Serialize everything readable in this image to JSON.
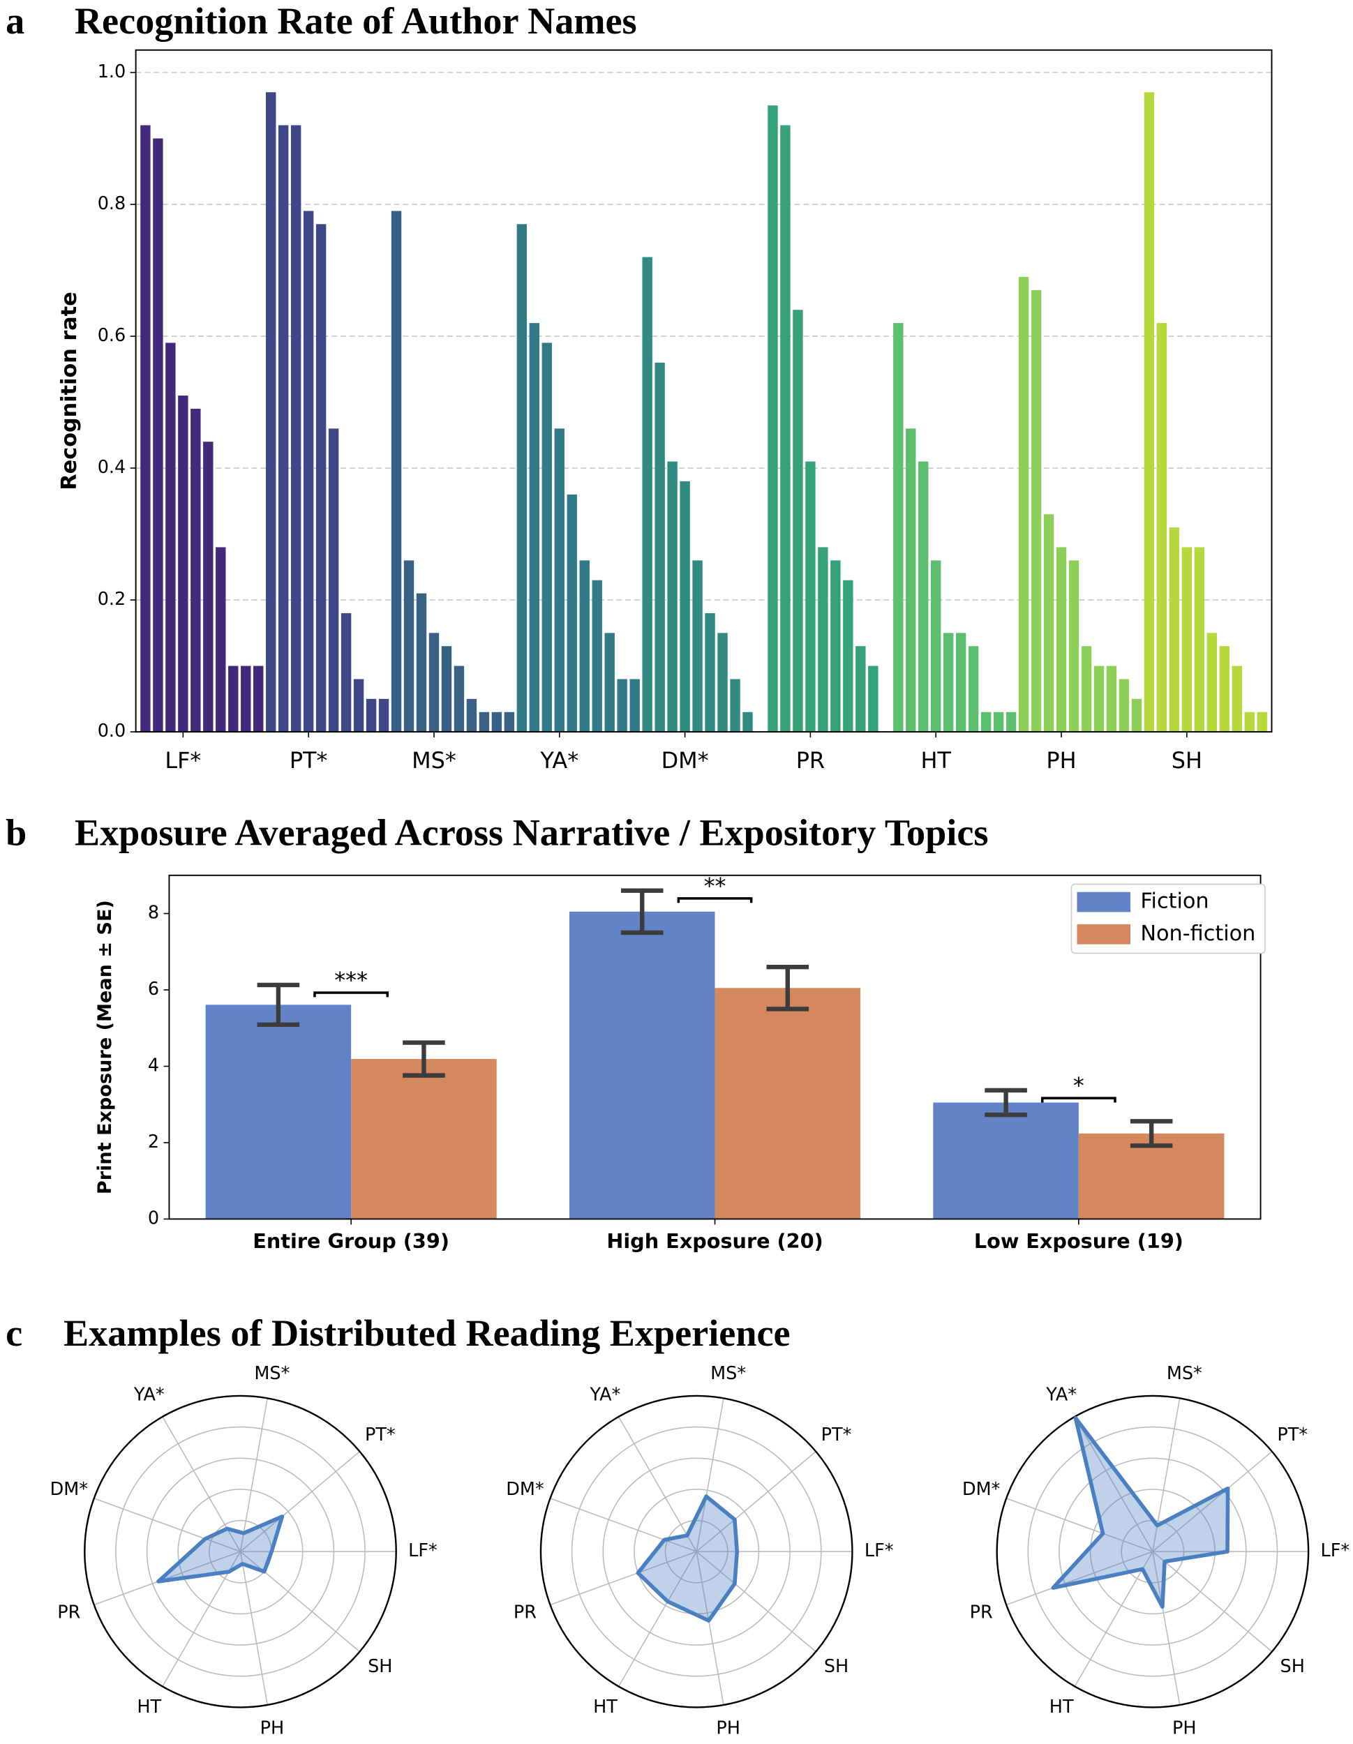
{
  "chart_data": [
    {
      "type": "bar_groups",
      "label": "a",
      "title": "Recognition Rate of Author Names",
      "ylabel": "Recognition rate",
      "ylim": [
        0,
        1.034
      ],
      "yticks": [
        {
          "value": 0,
          "label": "0.0"
        },
        {
          "value": 0.2,
          "label": "0.2"
        },
        {
          "value": 0.4,
          "label": "0.4"
        },
        {
          "value": 0.6,
          "label": "0.6"
        },
        {
          "value": 0.8,
          "label": "0.8"
        },
        {
          "value": 1.0,
          "label": "1.0"
        }
      ],
      "grid": true,
      "groups": [
        {
          "name": "LF*",
          "color": "#42297a",
          "values": [
            0.92,
            0.9,
            0.59,
            0.51,
            0.49,
            0.44,
            0.28,
            0.1,
            0.1,
            0.1
          ]
        },
        {
          "name": "PT*",
          "color": "#3f4788",
          "values": [
            0.97,
            0.92,
            0.92,
            0.79,
            0.77,
            0.46,
            0.18,
            0.08,
            0.05,
            0.05
          ]
        },
        {
          "name": "MS*",
          "color": "#3a6185",
          "values": [
            0.79,
            0.26,
            0.21,
            0.15,
            0.13,
            0.1,
            0.05,
            0.03,
            0.03,
            0.03
          ]
        },
        {
          "name": "YA*",
          "color": "#317a87",
          "values": [
            0.77,
            0.62,
            0.59,
            0.46,
            0.36,
            0.26,
            0.23,
            0.15,
            0.08,
            0.08
          ]
        },
        {
          "name": "DM*",
          "color": "#2f8a82",
          "values": [
            0.72,
            0.56,
            0.41,
            0.38,
            0.26,
            0.18,
            0.15,
            0.08,
            0.03,
            0
          ]
        },
        {
          "name": "PR",
          "color": "#36a27a",
          "values": [
            0.95,
            0.92,
            0.64,
            0.41,
            0.28,
            0.26,
            0.23,
            0.13,
            0.1,
            0
          ]
        },
        {
          "name": "HT",
          "color": "#5cbf70",
          "values": [
            0.62,
            0.46,
            0.41,
            0.26,
            0.15,
            0.15,
            0.13,
            0.03,
            0.03,
            0.03
          ]
        },
        {
          "name": "PH",
          "color": "#8ecf58",
          "values": [
            0.69,
            0.67,
            0.33,
            0.28,
            0.26,
            0.13,
            0.1,
            0.1,
            0.08,
            0.05
          ]
        },
        {
          "name": "SH",
          "color": "#b5d83c",
          "values": [
            0.97,
            0.62,
            0.31,
            0.28,
            0.28,
            0.15,
            0.13,
            0.1,
            0.03,
            0.03
          ]
        }
      ]
    },
    {
      "type": "grouped_bar",
      "label": "b",
      "title": "Exposure Averaged Across Narrative / Expository Topics",
      "ylabel": "Print Exposure (Mean ± SE)",
      "categories": [
        "Entire Group (39)",
        "High Exposure (20)",
        "Low Exposure (19)"
      ],
      "ylim": [
        0,
        9.0
      ],
      "yticks": [
        0,
        2,
        4,
        6,
        8
      ],
      "legend": "upper right",
      "series": [
        {
          "name": "Fiction",
          "color": "#6283c8",
          "values": [
            5.61,
            8.05,
            3.05
          ],
          "errors": [
            0.52,
            0.55,
            0.32
          ]
        },
        {
          "name": "Non-fiction",
          "color": "#d5875e",
          "values": [
            4.19,
            6.05,
            2.24
          ],
          "errors": [
            0.43,
            0.55,
            0.32
          ]
        }
      ],
      "annotations": [
        "***",
        "**",
        "*"
      ]
    },
    {
      "type": "radar",
      "label": "c",
      "title": "Examples of Distributed Reading Experience",
      "categories": [
        "LF*",
        "PT*",
        "MS*",
        "YA*",
        "DM*",
        "PR",
        "HT",
        "PH",
        "SH"
      ],
      "rlim": [
        0,
        1
      ],
      "rticks": [
        0.2,
        0.4,
        0.6,
        0.8
      ],
      "series": [
        {
          "color": "#4a7fc1",
          "values": [
            0.2,
            0.35,
            0.12,
            0.17,
            0.24,
            0.56,
            0.15,
            0.08,
            0.2
          ]
        },
        {
          "color": "#4a7fc1",
          "values": [
            0.26,
            0.32,
            0.36,
            0.12,
            0.22,
            0.4,
            0.37,
            0.45,
            0.32
          ]
        },
        {
          "color": "#4a7fc1",
          "values": [
            0.48,
            0.63,
            0.17,
            0.99,
            0.34,
            0.68,
            0.13,
            0.36,
            0.1
          ]
        }
      ]
    }
  ]
}
